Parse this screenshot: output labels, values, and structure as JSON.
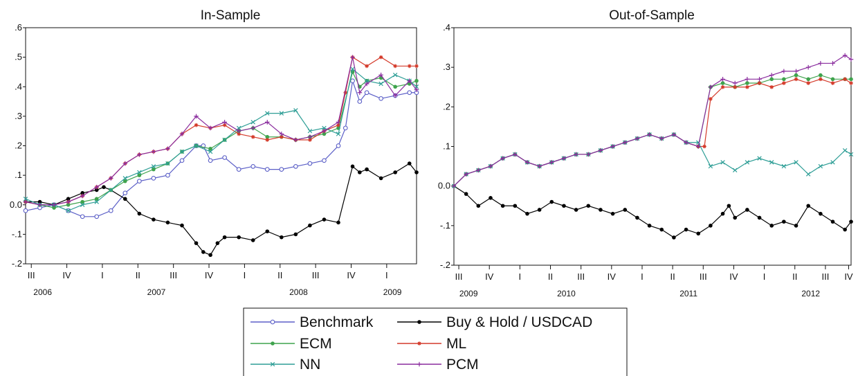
{
  "figure": {
    "legend": [
      {
        "key": "bench",
        "label": "Benchmark"
      },
      {
        "key": "bh",
        "label": "Buy & Hold / USDCAD"
      },
      {
        "key": "ecm",
        "label": "ECM"
      },
      {
        "key": "ml",
        "label": "ML"
      },
      {
        "key": "nn",
        "label": "NN"
      },
      {
        "key": "pcm",
        "label": "PCM"
      }
    ],
    "legend_placement": "bottom-center"
  },
  "chart_data": [
    {
      "type": "line",
      "title": "In-Sample",
      "xlabel": "",
      "ylabel": "",
      "grid": false,
      "x_range": [
        2006.5,
        2009.25
      ],
      "ylim": [
        -0.2,
        0.6
      ],
      "y_ticks": [
        ".6",
        ".5",
        ".4",
        ".3",
        ".2",
        ".1",
        "0.0",
        "-.1",
        "-.2"
      ],
      "quarter_ticks": [
        {
          "label": "III",
          "x": 2006.54
        },
        {
          "label": "IV",
          "x": 2006.79
        },
        {
          "label": "I",
          "x": 2007.04
        },
        {
          "label": "II",
          "x": 2007.29
        },
        {
          "label": "III",
          "x": 2007.54
        },
        {
          "label": "IV",
          "x": 2007.79
        },
        {
          "label": "I",
          "x": 2008.04
        },
        {
          "label": "II",
          "x": 2008.29
        },
        {
          "label": "III",
          "x": 2008.54
        },
        {
          "label": "IV",
          "x": 2008.79
        },
        {
          "label": "I",
          "x": 2009.04
        }
      ],
      "year_ticks": [
        {
          "label": "2006",
          "x": 2006.62
        },
        {
          "label": "2007",
          "x": 2007.42
        },
        {
          "label": "2008",
          "x": 2008.42
        },
        {
          "label": "2009",
          "x": 2009.08
        }
      ],
      "series": [
        {
          "name": "Benchmark",
          "key": "bench",
          "x": [
            2006.5,
            2006.6,
            2006.7,
            2006.8,
            2006.9,
            2007.0,
            2007.1,
            2007.2,
            2007.3,
            2007.4,
            2007.5,
            2007.6,
            2007.7,
            2007.75,
            2007.8,
            2007.9,
            2008.0,
            2008.1,
            2008.2,
            2008.3,
            2008.4,
            2008.5,
            2008.6,
            2008.7,
            2008.75,
            2008.8,
            2008.85,
            2008.9,
            2009.0,
            2009.1,
            2009.2,
            2009.25
          ],
          "y": [
            -0.02,
            -0.01,
            0.0,
            -0.02,
            -0.04,
            -0.04,
            -0.02,
            0.04,
            0.08,
            0.09,
            0.1,
            0.15,
            0.2,
            0.2,
            0.15,
            0.16,
            0.12,
            0.13,
            0.12,
            0.12,
            0.13,
            0.14,
            0.15,
            0.2,
            0.26,
            0.42,
            0.35,
            0.38,
            0.36,
            0.37,
            0.38,
            0.38
          ]
        },
        {
          "name": "Buy & Hold / USDCAD",
          "key": "bh",
          "x": [
            2006.5,
            2006.6,
            2006.7,
            2006.8,
            2006.9,
            2007.0,
            2007.05,
            2007.1,
            2007.2,
            2007.3,
            2007.4,
            2007.5,
            2007.6,
            2007.7,
            2007.75,
            2007.8,
            2007.85,
            2007.9,
            2008.0,
            2008.1,
            2008.2,
            2008.3,
            2008.4,
            2008.5,
            2008.6,
            2008.7,
            2008.8,
            2008.85,
            2008.9,
            2009.0,
            2009.1,
            2009.2,
            2009.25
          ],
          "y": [
            0.01,
            0.01,
            0.0,
            0.02,
            0.04,
            0.05,
            0.06,
            0.05,
            0.02,
            -0.03,
            -0.05,
            -0.06,
            -0.07,
            -0.13,
            -0.16,
            -0.17,
            -0.13,
            -0.11,
            -0.11,
            -0.12,
            -0.09,
            -0.11,
            -0.1,
            -0.07,
            -0.05,
            -0.06,
            0.13,
            0.11,
            0.12,
            0.09,
            0.11,
            0.14,
            0.11
          ]
        },
        {
          "name": "ECM",
          "key": "ecm",
          "x": [
            2006.5,
            2006.6,
            2006.7,
            2006.8,
            2006.9,
            2007.0,
            2007.1,
            2007.2,
            2007.3,
            2007.4,
            2007.5,
            2007.6,
            2007.7,
            2007.8,
            2007.9,
            2008.0,
            2008.1,
            2008.2,
            2008.3,
            2008.4,
            2008.5,
            2008.6,
            2008.7,
            2008.8,
            2008.85,
            2008.9,
            2009.0,
            2009.1,
            2009.2,
            2009.25
          ],
          "y": [
            0.01,
            0.0,
            -0.01,
            0.0,
            0.01,
            0.02,
            0.05,
            0.08,
            0.1,
            0.12,
            0.14,
            0.18,
            0.2,
            0.19,
            0.22,
            0.25,
            0.26,
            0.23,
            0.23,
            0.22,
            0.23,
            0.24,
            0.26,
            0.45,
            0.4,
            0.42,
            0.43,
            0.4,
            0.41,
            0.42
          ]
        },
        {
          "name": "ML",
          "key": "ml",
          "x": [
            2006.5,
            2006.6,
            2006.7,
            2006.8,
            2006.9,
            2007.0,
            2007.1,
            2007.2,
            2007.3,
            2007.4,
            2007.5,
            2007.6,
            2007.7,
            2007.8,
            2007.9,
            2008.0,
            2008.1,
            2008.2,
            2008.3,
            2008.4,
            2008.5,
            2008.6,
            2008.7,
            2008.75,
            2008.8,
            2008.9,
            2009.0,
            2009.1,
            2009.2,
            2009.25
          ],
          "y": [
            0.01,
            0.0,
            0.0,
            0.01,
            0.03,
            0.06,
            0.09,
            0.14,
            0.17,
            0.18,
            0.19,
            0.24,
            0.27,
            0.26,
            0.27,
            0.24,
            0.23,
            0.22,
            0.23,
            0.22,
            0.22,
            0.25,
            0.27,
            0.38,
            0.5,
            0.47,
            0.5,
            0.47,
            0.47,
            0.47
          ]
        },
        {
          "name": "NN",
          "key": "nn",
          "x": [
            2006.5,
            2006.6,
            2006.7,
            2006.8,
            2006.9,
            2007.0,
            2007.1,
            2007.2,
            2007.3,
            2007.4,
            2007.5,
            2007.6,
            2007.7,
            2007.8,
            2007.9,
            2008.0,
            2008.1,
            2008.2,
            2008.3,
            2008.4,
            2008.5,
            2008.6,
            2008.7,
            2008.8,
            2008.9,
            2009.0,
            2009.1,
            2009.2,
            2009.25
          ],
          "y": [
            0.02,
            0.0,
            0.0,
            -0.02,
            0.0,
            0.01,
            0.05,
            0.09,
            0.11,
            0.13,
            0.14,
            0.18,
            0.2,
            0.18,
            0.22,
            0.26,
            0.28,
            0.31,
            0.31,
            0.32,
            0.25,
            0.26,
            0.24,
            0.46,
            0.42,
            0.41,
            0.44,
            0.42,
            0.4
          ]
        },
        {
          "name": "PCM",
          "key": "pcm",
          "x": [
            2006.5,
            2006.6,
            2006.7,
            2006.8,
            2006.9,
            2007.0,
            2007.1,
            2007.2,
            2007.3,
            2007.4,
            2007.5,
            2007.6,
            2007.7,
            2007.8,
            2007.9,
            2008.0,
            2008.1,
            2008.2,
            2008.3,
            2008.4,
            2008.5,
            2008.6,
            2008.7,
            2008.8,
            2008.85,
            2008.9,
            2009.0,
            2009.1,
            2009.2,
            2009.25
          ],
          "y": [
            0.01,
            0.0,
            0.0,
            0.01,
            0.03,
            0.06,
            0.09,
            0.14,
            0.17,
            0.18,
            0.19,
            0.24,
            0.3,
            0.26,
            0.28,
            0.25,
            0.26,
            0.28,
            0.24,
            0.22,
            0.23,
            0.25,
            0.28,
            0.5,
            0.38,
            0.41,
            0.44,
            0.37,
            0.42,
            0.39
          ]
        }
      ]
    },
    {
      "type": "line",
      "title": "Out-of-Sample",
      "xlabel": "",
      "ylabel": "",
      "grid": false,
      "x_range": [
        2009.5,
        2012.75
      ],
      "ylim": [
        -0.2,
        0.4
      ],
      "y_ticks": [
        ".4",
        ".3",
        ".2",
        ".1",
        "0.0",
        "-.1",
        "-.2"
      ],
      "quarter_ticks": [
        {
          "label": "III",
          "x": 2009.54
        },
        {
          "label": "IV",
          "x": 2009.79
        },
        {
          "label": "I",
          "x": 2010.04
        },
        {
          "label": "II",
          "x": 2010.29
        },
        {
          "label": "III",
          "x": 2010.54
        },
        {
          "label": "IV",
          "x": 2010.79
        },
        {
          "label": "I",
          "x": 2011.04
        },
        {
          "label": "II",
          "x": 2011.29
        },
        {
          "label": "III",
          "x": 2011.54
        },
        {
          "label": "IV",
          "x": 2011.79
        },
        {
          "label": "I",
          "x": 2012.04
        },
        {
          "label": "II",
          "x": 2012.29
        },
        {
          "label": "III",
          "x": 2012.54
        },
        {
          "label": "IV",
          "x": 2012.73
        }
      ],
      "year_ticks": [
        {
          "label": "2009",
          "x": 2009.62
        },
        {
          "label": "2010",
          "x": 2010.42
        },
        {
          "label": "2011",
          "x": 2011.42
        },
        {
          "label": "2012",
          "x": 2012.42
        }
      ],
      "series": [
        {
          "name": "Buy & Hold / USDCAD",
          "key": "bh",
          "x": [
            2009.5,
            2009.6,
            2009.7,
            2009.8,
            2009.9,
            2010.0,
            2010.1,
            2010.2,
            2010.3,
            2010.4,
            2010.5,
            2010.6,
            2010.7,
            2010.8,
            2010.9,
            2011.0,
            2011.1,
            2011.2,
            2011.3,
            2011.4,
            2011.5,
            2011.6,
            2011.7,
            2011.75,
            2011.8,
            2011.9,
            2012.0,
            2012.1,
            2012.2,
            2012.3,
            2012.4,
            2012.5,
            2012.6,
            2012.7,
            2012.75
          ],
          "y": [
            0.0,
            -0.02,
            -0.05,
            -0.03,
            -0.05,
            -0.05,
            -0.07,
            -0.06,
            -0.04,
            -0.05,
            -0.06,
            -0.05,
            -0.06,
            -0.07,
            -0.06,
            -0.08,
            -0.1,
            -0.11,
            -0.13,
            -0.11,
            -0.12,
            -0.1,
            -0.07,
            -0.05,
            -0.08,
            -0.06,
            -0.08,
            -0.1,
            -0.09,
            -0.1,
            -0.05,
            -0.07,
            -0.09,
            -0.11,
            -0.09
          ]
        },
        {
          "name": "ECM",
          "key": "ecm",
          "x": [
            2009.5,
            2009.6,
            2009.7,
            2009.8,
            2009.9,
            2010.0,
            2010.1,
            2010.2,
            2010.3,
            2010.4,
            2010.5,
            2010.6,
            2010.7,
            2010.8,
            2010.9,
            2011.0,
            2011.1,
            2011.2,
            2011.3,
            2011.4,
            2011.5,
            2011.6,
            2011.7,
            2011.8,
            2011.9,
            2012.0,
            2012.1,
            2012.2,
            2012.3,
            2012.4,
            2012.5,
            2012.6,
            2012.7,
            2012.75
          ],
          "y": [
            0.0,
            0.03,
            0.04,
            0.05,
            0.07,
            0.08,
            0.06,
            0.05,
            0.06,
            0.07,
            0.08,
            0.08,
            0.09,
            0.1,
            0.11,
            0.12,
            0.13,
            0.12,
            0.13,
            0.11,
            0.1,
            0.25,
            0.26,
            0.25,
            0.26,
            0.26,
            0.27,
            0.27,
            0.28,
            0.27,
            0.28,
            0.27,
            0.27,
            0.27
          ]
        },
        {
          "name": "ML",
          "key": "ml",
          "x": [
            2009.5,
            2009.6,
            2009.7,
            2009.8,
            2009.9,
            2010.0,
            2010.1,
            2010.2,
            2010.3,
            2010.4,
            2010.5,
            2010.6,
            2010.7,
            2010.8,
            2010.9,
            2011.0,
            2011.1,
            2011.2,
            2011.3,
            2011.4,
            2011.5,
            2011.55,
            2011.6,
            2011.7,
            2011.8,
            2011.9,
            2012.0,
            2012.1,
            2012.2,
            2012.3,
            2012.4,
            2012.5,
            2012.6,
            2012.7,
            2012.75
          ],
          "y": [
            0.0,
            0.03,
            0.04,
            0.05,
            0.07,
            0.08,
            0.06,
            0.05,
            0.06,
            0.07,
            0.08,
            0.08,
            0.09,
            0.1,
            0.11,
            0.12,
            0.13,
            0.12,
            0.13,
            0.11,
            0.1,
            0.1,
            0.22,
            0.25,
            0.25,
            0.25,
            0.26,
            0.25,
            0.26,
            0.27,
            0.26,
            0.27,
            0.26,
            0.27,
            0.26
          ]
        },
        {
          "name": "NN",
          "key": "nn",
          "x": [
            2009.5,
            2009.6,
            2009.7,
            2009.8,
            2009.9,
            2010.0,
            2010.1,
            2010.2,
            2010.3,
            2010.4,
            2010.5,
            2010.6,
            2010.7,
            2010.8,
            2010.9,
            2011.0,
            2011.1,
            2011.2,
            2011.3,
            2011.4,
            2011.5,
            2011.6,
            2011.7,
            2011.8,
            2011.9,
            2012.0,
            2012.1,
            2012.2,
            2012.3,
            2012.4,
            2012.5,
            2012.6,
            2012.7,
            2012.75
          ],
          "y": [
            0.0,
            0.03,
            0.04,
            0.05,
            0.07,
            0.08,
            0.06,
            0.05,
            0.06,
            0.07,
            0.08,
            0.08,
            0.09,
            0.1,
            0.11,
            0.12,
            0.13,
            0.12,
            0.13,
            0.11,
            0.11,
            0.05,
            0.06,
            0.04,
            0.06,
            0.07,
            0.06,
            0.05,
            0.06,
            0.03,
            0.05,
            0.06,
            0.09,
            0.08
          ]
        },
        {
          "name": "PCM",
          "key": "pcm",
          "x": [
            2009.5,
            2009.6,
            2009.7,
            2009.8,
            2009.9,
            2010.0,
            2010.1,
            2010.2,
            2010.3,
            2010.4,
            2010.5,
            2010.6,
            2010.7,
            2010.8,
            2010.9,
            2011.0,
            2011.1,
            2011.2,
            2011.3,
            2011.4,
            2011.5,
            2011.6,
            2011.7,
            2011.8,
            2011.9,
            2012.0,
            2012.1,
            2012.2,
            2012.3,
            2012.4,
            2012.5,
            2012.6,
            2012.7,
            2012.75
          ],
          "y": [
            0.0,
            0.03,
            0.04,
            0.05,
            0.07,
            0.08,
            0.06,
            0.05,
            0.06,
            0.07,
            0.08,
            0.08,
            0.09,
            0.1,
            0.11,
            0.12,
            0.13,
            0.12,
            0.13,
            0.11,
            0.1,
            0.25,
            0.27,
            0.26,
            0.27,
            0.27,
            0.28,
            0.29,
            0.29,
            0.3,
            0.31,
            0.31,
            0.33,
            0.32
          ]
        }
      ]
    }
  ],
  "colors": {
    "bench": "#5b5fc7",
    "bh": "#000000",
    "ecm": "#3fa34d",
    "ml": "#d43a2a",
    "nn": "#2e9e96",
    "pcm": "#8a2c9e",
    "axis": "#111111"
  },
  "markers": {
    "bench": "open-circle",
    "bh": "filled-dot",
    "ecm": "filled-dot",
    "ml": "star",
    "nn": "x-cross",
    "pcm": "plus"
  }
}
